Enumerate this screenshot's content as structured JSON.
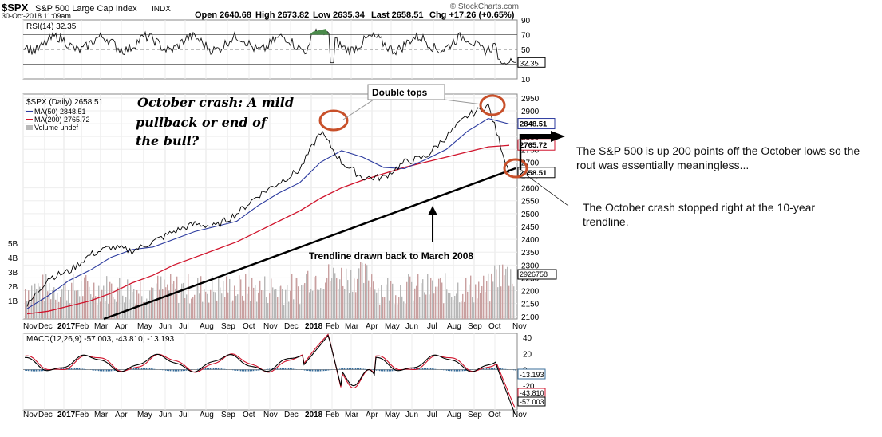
{
  "header": {
    "symbol": "$SPX",
    "name": "S&P 500 Large Cap Index",
    "exchange": "INDX",
    "date": "30-Oct-2018 11:09am",
    "open": "Open 2640.68",
    "high": "High 2673.82",
    "low": "Low 2635.34",
    "last": "Last 2658.51",
    "chg": "Chg +17.26 (+0.65%)",
    "brand": "© StockCharts.com"
  },
  "rsi": {
    "label": "RSI(14) 32.35",
    "value_badge": "32.35",
    "ticks": [
      "90",
      "70",
      "50",
      "30",
      "10"
    ]
  },
  "price": {
    "legend_main": "$SPX (Daily) 2658.51",
    "legend_ma50": "MA(50) 2848.51",
    "legend_ma200": "MA(200) 2765.72",
    "legend_vol": "Volume undef",
    "ticks": [
      "2950",
      "2900",
      "2850",
      "2800",
      "2750",
      "2700",
      "2650",
      "2600",
      "2550",
      "2500",
      "2450",
      "2400",
      "2350",
      "2300",
      "2250",
      "2200",
      "2150",
      "2100"
    ],
    "badge_last": "2658.51",
    "badge_ma50": "2848.51",
    "badge_ma200": "2765.72",
    "vol_ticks": [
      "5B",
      "4B",
      "3B",
      "2B",
      "1B"
    ],
    "vol_badge": "2926758"
  },
  "macd": {
    "label": "MACD(12,26,9) -57.003, -43.810, -13.193",
    "ticks": [
      "40",
      "20",
      "0",
      "-20",
      "-40"
    ],
    "badge_hist": "-13.193",
    "badge_signal": "-43.810",
    "badge_macd": "-57.003"
  },
  "xaxis": {
    "labels": [
      "Nov",
      "Dec",
      "2017",
      "Feb",
      "Mar",
      "Apr",
      "May",
      "Jun",
      "Jul",
      "Aug",
      "Sep",
      "Oct",
      "Nov",
      "Dec",
      "2018",
      "Feb",
      "Mar",
      "Apr",
      "May",
      "Jun",
      "Jul",
      "Aug",
      "Sep",
      "Oct",
      "Nov"
    ]
  },
  "annotations": {
    "october_crash": "October crash: A mild pullback or end of the bull?",
    "double_tops": "Double tops",
    "trendline": "Trendline drawn back to March 2008",
    "note_rout": "The S&P 500 is up 200 points off the October lows so the rout was essentially meaningless...",
    "note_trendline": "The October crash stopped right at the 10-year trendline."
  },
  "colors": {
    "price": "#000000",
    "ma50": "#2b3a9e",
    "ma200": "#d0142c",
    "volume": "#b8b8b8",
    "annotation_circle": "#c8502a",
    "rsi_fill_high": "#4a8a4a"
  },
  "chart_data": {
    "type": "line",
    "title": "$SPX S&P 500 Large Cap Index",
    "x": [
      "2016-11",
      "2016-12",
      "2017-01",
      "2017-02",
      "2017-03",
      "2017-04",
      "2017-05",
      "2017-06",
      "2017-07",
      "2017-08",
      "2017-09",
      "2017-10",
      "2017-11",
      "2017-12",
      "2018-01",
      "2018-02",
      "2018-03",
      "2018-04",
      "2018-05",
      "2018-06",
      "2018-07",
      "2018-08",
      "2018-09",
      "2018-10"
    ],
    "series": [
      {
        "name": "$SPX (Daily)",
        "values": [
          2140,
          2250,
          2275,
          2340,
          2370,
          2355,
          2390,
          2430,
          2460,
          2450,
          2500,
          2570,
          2620,
          2670,
          2820,
          2700,
          2640,
          2640,
          2700,
          2720,
          2800,
          2880,
          2920,
          2658.51
        ]
      },
      {
        "name": "MA(50)",
        "values": [
          2130,
          2180,
          2240,
          2280,
          2330,
          2360,
          2370,
          2400,
          2430,
          2450,
          2470,
          2530,
          2580,
          2620,
          2700,
          2745,
          2720,
          2680,
          2675,
          2710,
          2750,
          2820,
          2870,
          2848.51
        ]
      },
      {
        "name": "MA(200)",
        "values": [
          2110,
          2120,
          2140,
          2160,
          2190,
          2230,
          2260,
          2300,
          2330,
          2360,
          2390,
          2430,
          2470,
          2510,
          2560,
          2600,
          2630,
          2655,
          2680,
          2700,
          2720,
          2740,
          2760,
          2765.72
        ]
      }
    ],
    "ylim": [
      2090,
      2965
    ],
    "grid": true,
    "rsi": {
      "label": "RSI(14)",
      "last": 32.35,
      "ylim": [
        10,
        90
      ]
    },
    "macd": {
      "label": "MACD(12,26,9)",
      "macd": -57.003,
      "signal": -43.81,
      "histogram": -13.193,
      "ylim": [
        -50,
        45
      ]
    }
  }
}
